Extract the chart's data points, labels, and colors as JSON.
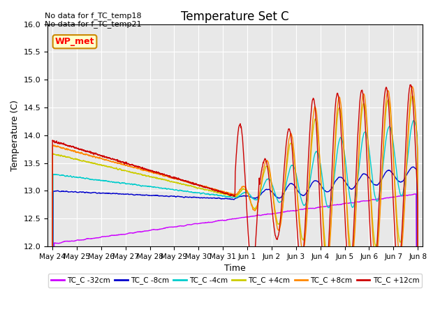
{
  "title": "Temperature Set C",
  "xlabel": "Time",
  "ylabel": "Temperature (C)",
  "ylim": [
    12.0,
    16.0
  ],
  "yticks": [
    12.0,
    12.5,
    13.0,
    13.5,
    14.0,
    14.5,
    15.0,
    15.5,
    16.0
  ],
  "annotation_text": "No data for f_TC_temp18\nNo data for f_TC_temp21",
  "wp_met_label": "WP_met",
  "legend_entries": [
    "TC_C -32cm",
    "TC_C -8cm",
    "TC_C -4cm",
    "TC_C +4cm",
    "TC_C +8cm",
    "TC_C +12cm"
  ],
  "line_colors": [
    "#cc00ff",
    "#0000cc",
    "#00cccc",
    "#cccc00",
    "#ff8800",
    "#cc0000"
  ],
  "bg_color": "#e8e8e8",
  "x_tick_labels": [
    "May 24",
    "May 25",
    "May 26",
    "May 27",
    "May 28",
    "May 29",
    "May 30",
    "May 31",
    "Jun 1",
    "Jun 2",
    "Jun 3",
    "Jun 4",
    "Jun 5",
    "Jun 6",
    "Jun 7",
    "Jun 8"
  ],
  "x_tick_positions": [
    0,
    1,
    2,
    3,
    4,
    5,
    6,
    7,
    8,
    9,
    10,
    11,
    12,
    13,
    14,
    15
  ]
}
